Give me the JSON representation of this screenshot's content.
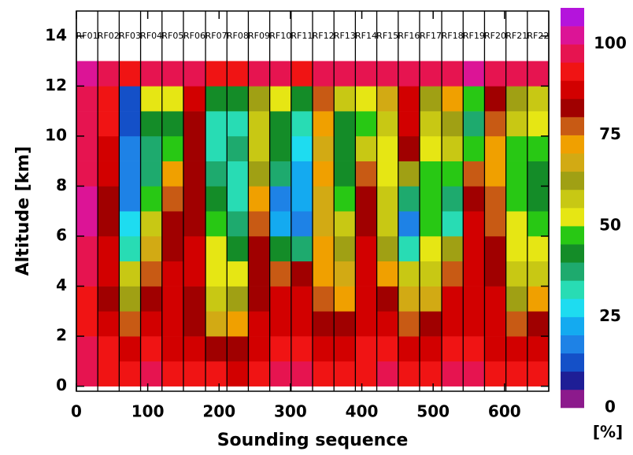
{
  "chart_data": {
    "type": "heatmap",
    "xlabel": "Sounding sequence",
    "ylabel": "Altitude [km]",
    "xlim": [
      0,
      662
    ],
    "ylim": [
      -0.2,
      15
    ],
    "xticks": [
      0,
      100,
      200,
      300,
      400,
      500,
      600
    ],
    "yticks": [
      0,
      2,
      4,
      6,
      8,
      10,
      12,
      14
    ],
    "flights": {
      "names": [
        "RF01",
        "RF02",
        "RF03",
        "RF04",
        "RF05",
        "RF06",
        "RF07",
        "RF08",
        "RF09",
        "RF10",
        "RF11",
        "RF12",
        "RF13",
        "RF14",
        "RF15",
        "RF16",
        "RF17",
        "RF18",
        "RF19",
        "RF20",
        "RF21",
        "RF22"
      ],
      "boundaries": [
        0,
        30,
        60,
        90,
        120,
        150,
        181,
        211,
        241,
        271,
        301,
        331,
        361,
        391,
        421,
        451,
        481,
        512,
        542,
        572,
        602,
        632,
        662
      ]
    },
    "y_edges": [
      0,
      1,
      2,
      3,
      4,
      5,
      6,
      7,
      8,
      9,
      10,
      11,
      12,
      13
    ],
    "z": [
      [
        95,
        92,
        90,
        95,
        92,
        90,
        90,
        88,
        92,
        95,
        95,
        92,
        90,
        92,
        95,
        90,
        92,
        95,
        95,
        92,
        90,
        92
      ],
      [
        95,
        90,
        85,
        90,
        88,
        85,
        80,
        82,
        88,
        92,
        90,
        85,
        88,
        90,
        92,
        85,
        85,
        90,
        90,
        88,
        85,
        88
      ],
      [
        92,
        85,
        75,
        85,
        85,
        80,
        65,
        70,
        85,
        88,
        88,
        80,
        80,
        88,
        85,
        75,
        80,
        88,
        88,
        85,
        75,
        80
      ],
      [
        92,
        80,
        60,
        80,
        85,
        80,
        55,
        60,
        80,
        85,
        85,
        75,
        70,
        85,
        80,
        65,
        65,
        85,
        85,
        85,
        60,
        70
      ],
      [
        95,
        85,
        55,
        75,
        85,
        85,
        50,
        50,
        80,
        75,
        80,
        70,
        65,
        85,
        70,
        55,
        55,
        75,
        85,
        80,
        55,
        55
      ],
      [
        95,
        85,
        30,
        65,
        80,
        85,
        50,
        40,
        80,
        40,
        35,
        70,
        60,
        85,
        60,
        30,
        50,
        60,
        85,
        80,
        50,
        50
      ],
      [
        100,
        80,
        25,
        55,
        80,
        80,
        45,
        35,
        75,
        20,
        15,
        65,
        55,
        80,
        55,
        15,
        45,
        30,
        85,
        75,
        50,
        45
      ],
      [
        100,
        80,
        15,
        45,
        75,
        80,
        40,
        30,
        70,
        15,
        20,
        65,
        45,
        80,
        55,
        35,
        45,
        35,
        80,
        75,
        45,
        40
      ],
      [
        95,
        85,
        15,
        35,
        70,
        80,
        35,
        30,
        60,
        35,
        20,
        70,
        40,
        75,
        50,
        60,
        45,
        45,
        75,
        70,
        45,
        40
      ],
      [
        95,
        85,
        15,
        35,
        45,
        80,
        30,
        35,
        55,
        40,
        25,
        65,
        40,
        55,
        50,
        80,
        50,
        55,
        45,
        70,
        45,
        45
      ],
      [
        95,
        90,
        10,
        40,
        40,
        80,
        30,
        30,
        55,
        40,
        30,
        70,
        40,
        45,
        55,
        85,
        55,
        60,
        35,
        75,
        55,
        50
      ],
      [
        95,
        90,
        10,
        50,
        50,
        85,
        40,
        40,
        60,
        50,
        40,
        75,
        55,
        50,
        65,
        85,
        60,
        70,
        45,
        80,
        60,
        55
      ],
      [
        100,
        95,
        90,
        95,
        95,
        95,
        90,
        90,
        95,
        95,
        90,
        95,
        95,
        95,
        95,
        95,
        95,
        95,
        100,
        95,
        95,
        95
      ]
    ],
    "colorbar": {
      "label": "[%]",
      "levels": [
        0,
        5,
        10,
        15,
        20,
        25,
        30,
        35,
        40,
        45,
        50,
        55,
        60,
        65,
        70,
        75,
        80,
        85,
        90,
        95,
        100,
        105,
        110
      ],
      "colors": [
        "#8c1a8c",
        "#1e1e96",
        "#1450c8",
        "#1e82e6",
        "#14aaf0",
        "#1edcf0",
        "#28dcb4",
        "#1eaa6e",
        "#148c28",
        "#28c814",
        "#e6e614",
        "#c8c814",
        "#a0a014",
        "#d2aa14",
        "#f0a000",
        "#c85a14",
        "#a00000",
        "#d20000",
        "#f01414",
        "#e61450",
        "#dc1496",
        "#b414dc"
      ],
      "ticks": [
        0,
        25,
        50,
        75,
        100
      ]
    }
  }
}
